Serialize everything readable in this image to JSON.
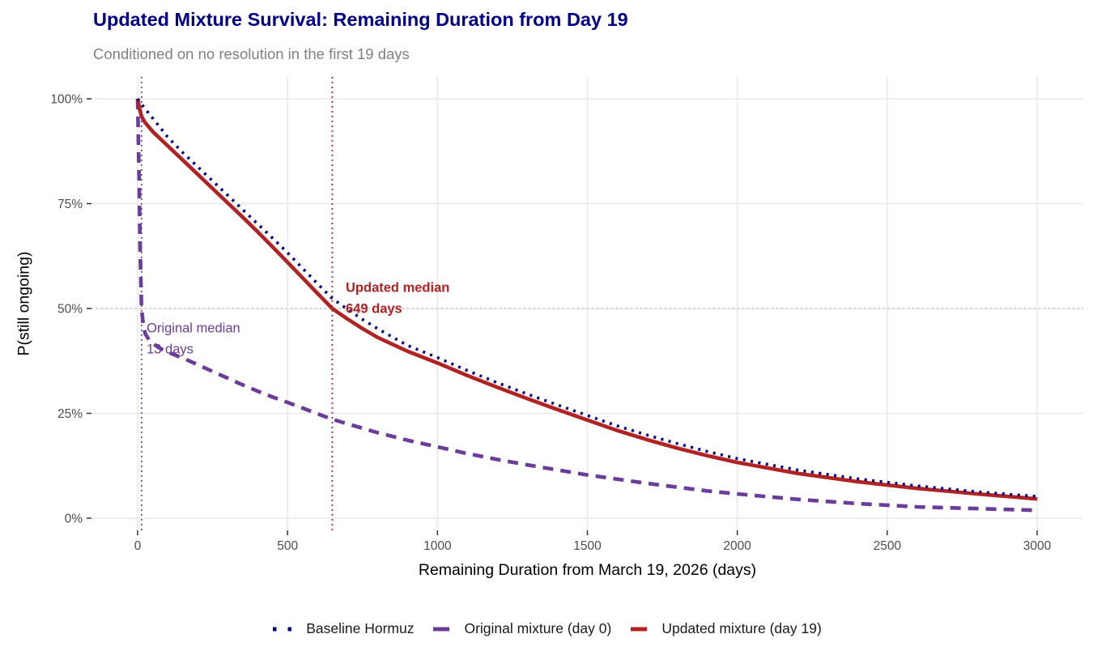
{
  "header": {
    "title": "Updated Mixture Survival: Remaining Duration from Day 19",
    "subtitle": "Conditioned on no resolution in the first 19 days",
    "title_color": "#00008B",
    "subtitle_color": "#808080"
  },
  "colors": {
    "background": "#FFFFFF",
    "gridline": "#E9E9E9",
    "tick_mark": "#333333",
    "tick_label": "#4D4D4D",
    "fifty_pct_line": "#BDBDBD",
    "baseline_navy": "#00008B",
    "original_purple": "#6A3D9A",
    "updated_red": "#B22222"
  },
  "chart_data": {
    "type": "line",
    "title": "Updated Mixture Survival: Remaining Duration from Day 19",
    "subtitle": "Conditioned on no resolution in the first 19 days",
    "xlabel": "Remaining Duration from March 19, 2026 (days)",
    "ylabel": "P(still ongoing)",
    "xlim": [
      0,
      3000
    ],
    "ylim_pct": [
      0,
      100
    ],
    "grid": "major-only",
    "legend_position": "bottom",
    "x_ticks": [
      {
        "value": 0,
        "label": "0"
      },
      {
        "value": 500,
        "label": "500"
      },
      {
        "value": 1000,
        "label": "1000"
      },
      {
        "value": 1500,
        "label": "1500"
      },
      {
        "value": 2000,
        "label": "2000"
      },
      {
        "value": 2500,
        "label": "2500"
      },
      {
        "value": 3000,
        "label": "3000"
      }
    ],
    "y_ticks": [
      {
        "value": 0,
        "label": "0%"
      },
      {
        "value": 25,
        "label": "25%"
      },
      {
        "value": 50,
        "label": "50%"
      },
      {
        "value": 75,
        "label": "75%"
      },
      {
        "value": 100,
        "label": "100%"
      }
    ],
    "reference_lines": [
      {
        "id": "fifty-percent-line",
        "orientation": "horizontal",
        "y_pct": 50,
        "style": "dotted",
        "color": "#BDBDBD"
      },
      {
        "id": "original-median-line",
        "orientation": "vertical",
        "x_days": 13,
        "style": "dotted",
        "color": "#6A3D9A"
      },
      {
        "id": "updated-median-line",
        "orientation": "vertical",
        "x_days": 649,
        "style": "dotted",
        "color": "#B22222"
      }
    ],
    "annotations": [
      {
        "id": "updated-median-label",
        "lines": [
          "Updated median",
          "649 days"
        ],
        "x_days": 694,
        "y_pct": 54.0,
        "color": "#B22222",
        "bold": true
      },
      {
        "id": "original-median-label",
        "lines": [
          "Original median",
          "13 days"
        ],
        "x_days": 30,
        "y_pct": 44.3,
        "color": "#6A3D9A",
        "bold": false
      }
    ],
    "series": [
      {
        "id": "original-mixture-day-0",
        "name": "Original mixture (day 0)",
        "color": "#6A3D9A",
        "line_style": "dashed",
        "median_days": 13,
        "x": [
          0,
          2,
          5,
          8,
          13,
          18,
          25,
          40,
          60,
          80,
          100,
          150,
          200,
          250,
          300,
          350,
          400,
          450,
          500,
          600,
          649,
          700,
          800,
          900,
          1000,
          1100,
          1200,
          1300,
          1400,
          1500,
          1600,
          1700,
          1800,
          1900,
          2000,
          2200,
          2400,
          2600,
          2800,
          3000
        ],
        "y_pct": [
          100,
          92,
          80,
          65,
          50,
          46.5,
          44,
          42.3,
          41.2,
          40.3,
          39.6,
          38.2,
          36.6,
          35,
          33.4,
          31.8,
          30.3,
          28.9,
          27.6,
          24.9,
          23.6,
          22.5,
          20.4,
          18.6,
          17,
          15.4,
          14,
          12.7,
          11.5,
          10.3,
          9.3,
          8.3,
          7.4,
          6.5,
          5.8,
          4.5,
          3.5,
          2.7,
          2.3,
          1.9
        ]
      },
      {
        "id": "updated-mixture-day-19",
        "name": "Updated mixture (day 19)",
        "color": "#B22222",
        "line_style": "solid",
        "median_days": 649,
        "x": [
          0,
          6,
          13,
          25,
          50,
          100,
          150,
          200,
          250,
          300,
          350,
          400,
          450,
          500,
          550,
          600,
          649,
          700,
          750,
          800,
          900,
          1000,
          1100,
          1200,
          1300,
          1400,
          1500,
          1600,
          1700,
          1800,
          1900,
          2000,
          2200,
          2400,
          2600,
          2800,
          3000
        ],
        "y_pct": [
          100,
          97.8,
          95.8,
          94.3,
          92.2,
          88.8,
          85.4,
          82,
          78.6,
          75.2,
          71.8,
          68.3,
          64.7,
          61,
          57.3,
          53.6,
          50,
          47.5,
          45.2,
          43.1,
          39.8,
          37,
          34,
          31.2,
          28.5,
          25.9,
          23.4,
          20.9,
          18.7,
          16.7,
          14.9,
          13.3,
          10.7,
          8.7,
          7.1,
          5.8,
          4.6
        ]
      },
      {
        "id": "baseline-hormuz",
        "name": "Baseline Hormuz",
        "color": "#00008B",
        "line_style": "dotted",
        "x": [
          0,
          6,
          13,
          25,
          50,
          100,
          150,
          200,
          250,
          300,
          350,
          400,
          450,
          500,
          550,
          600,
          649,
          700,
          750,
          800,
          900,
          1000,
          1100,
          1200,
          1300,
          1400,
          1500,
          1600,
          1700,
          1800,
          1900,
          2000,
          2200,
          2400,
          2600,
          2800,
          3000
        ],
        "y_pct": [
          100,
          99.4,
          98.7,
          97.6,
          95.4,
          90.9,
          87.2,
          83.8,
          80.4,
          77,
          73.6,
          70.2,
          66.8,
          63.3,
          59.6,
          55.9,
          52.4,
          49.8,
          47.4,
          45.2,
          41.2,
          38.3,
          35.2,
          32.3,
          29.6,
          27,
          24.5,
          22,
          19.8,
          17.8,
          15.9,
          14.2,
          11.5,
          9.4,
          7.7,
          6.3,
          5.2
        ]
      }
    ]
  },
  "legend": {
    "items": [
      {
        "label": "Baseline Hormuz",
        "style": "dotted",
        "color": "#00008B"
      },
      {
        "label": "Original mixture (day 0)",
        "style": "dashed",
        "color": "#6A3D9A"
      },
      {
        "label": "Updated mixture (day 19)",
        "style": "solid",
        "color": "#B22222"
      }
    ]
  }
}
